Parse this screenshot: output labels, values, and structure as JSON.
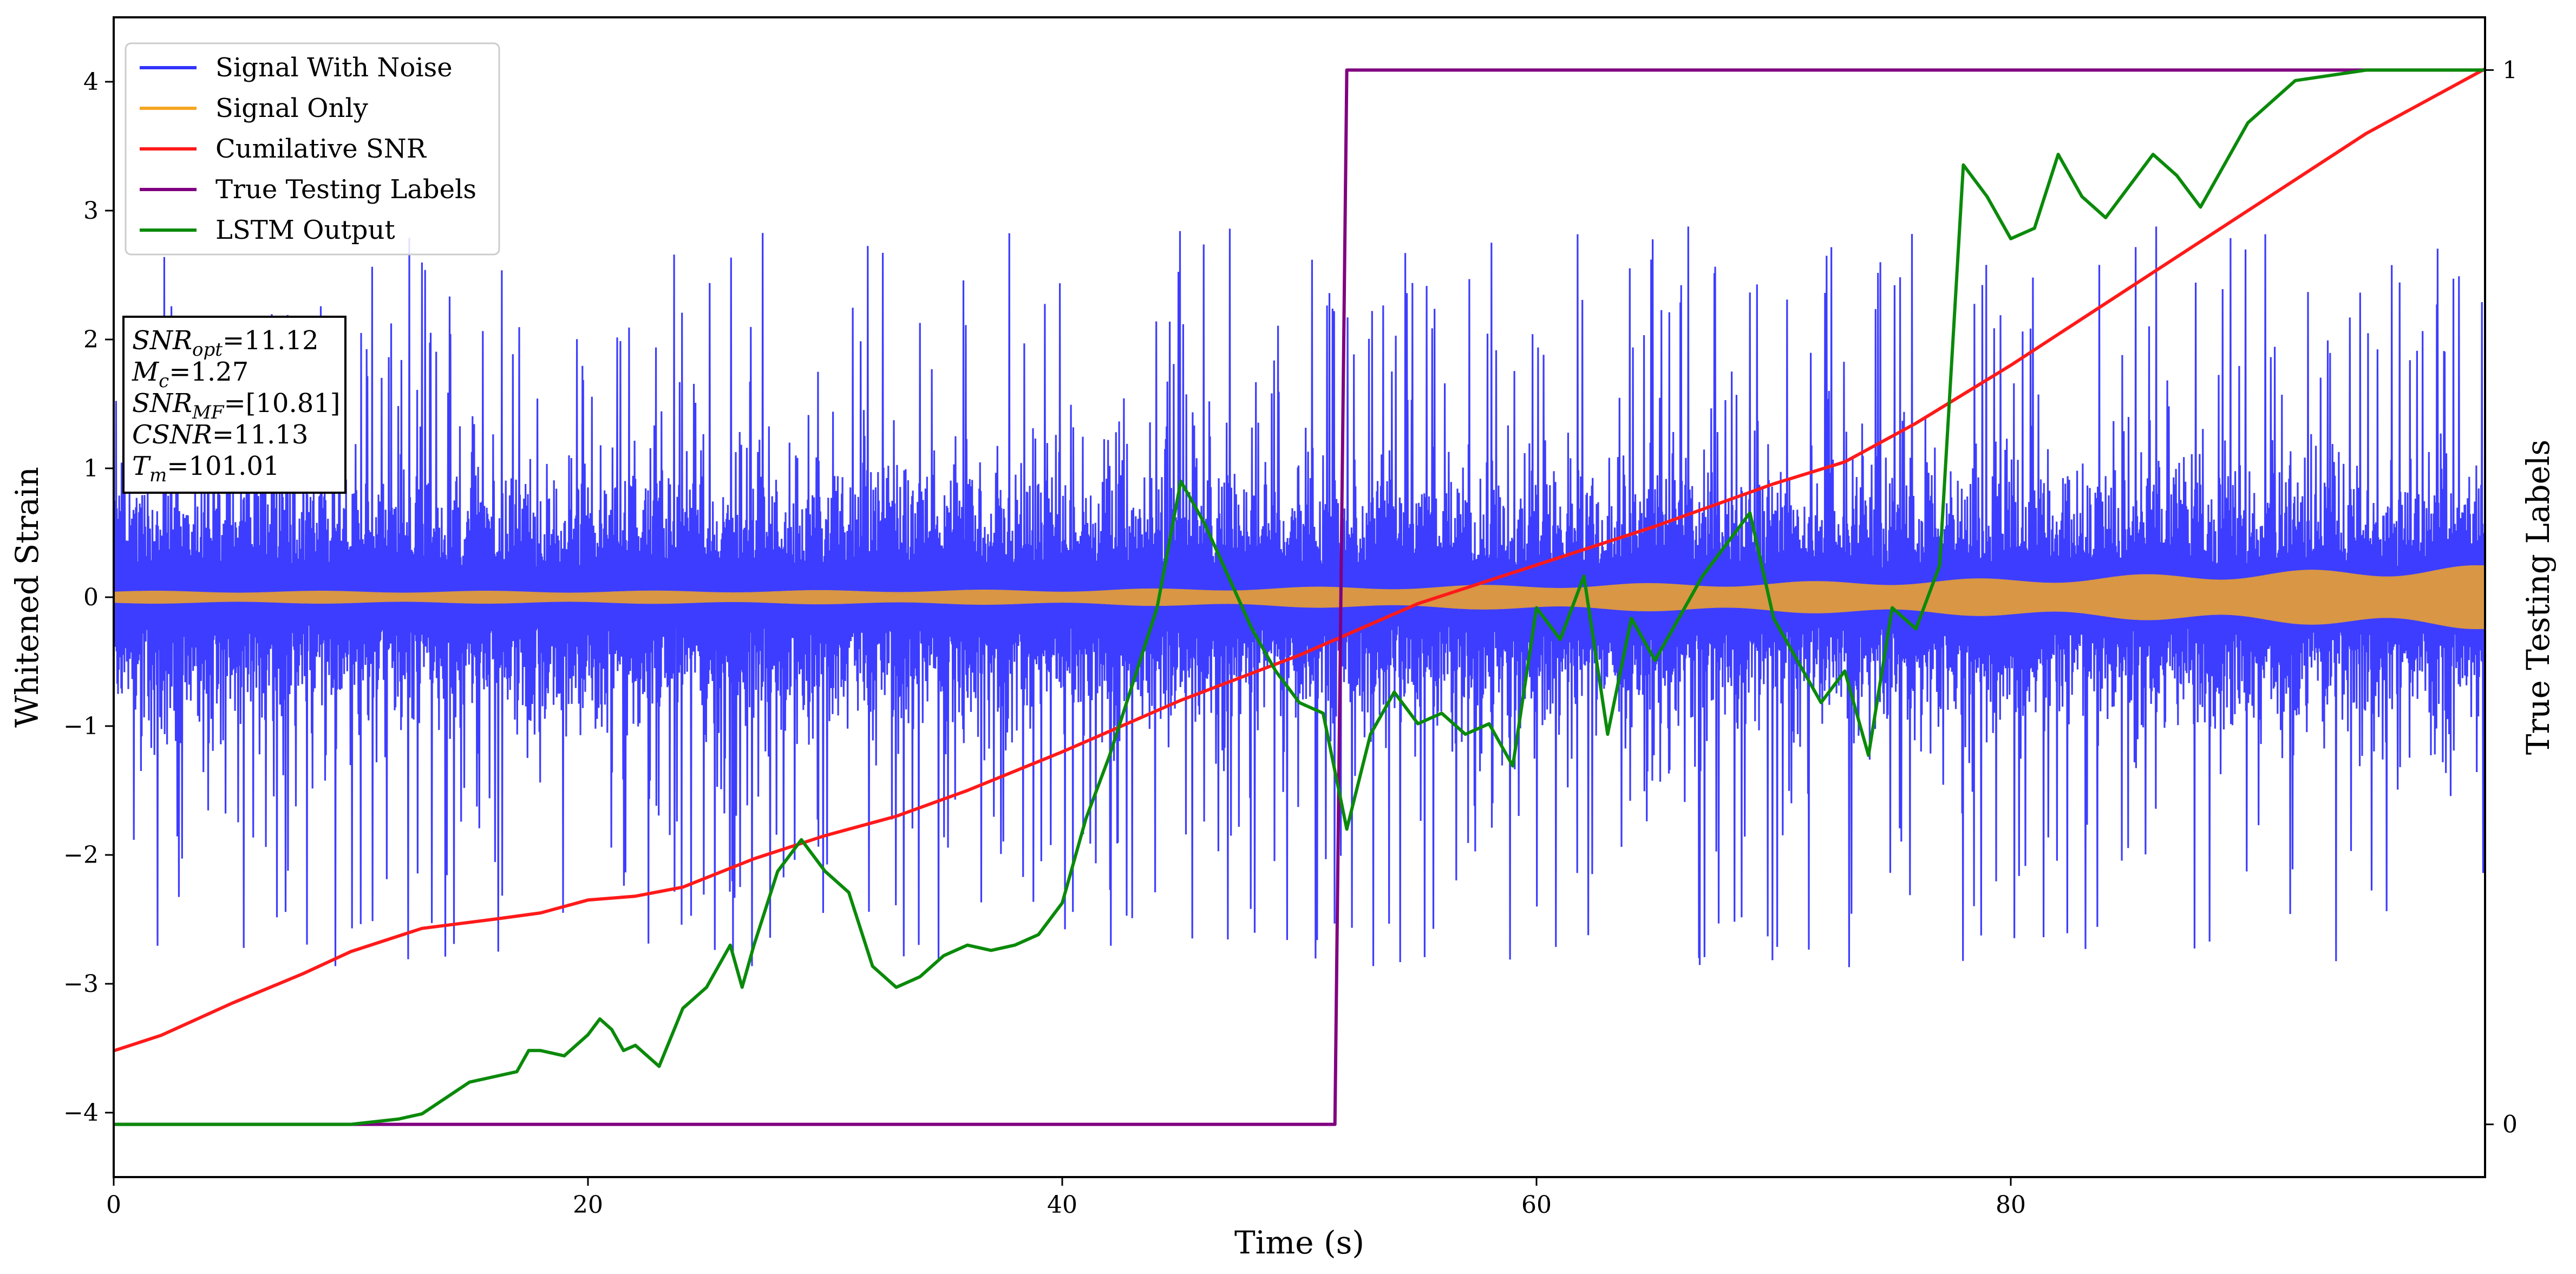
{
  "chart_data": {
    "type": "line",
    "title": "",
    "xlabel": "Time (s)",
    "ylabel": "Whitened Strain",
    "y2label": "True Testing Labels",
    "xlim": [
      0,
      100
    ],
    "ylim": [
      -4.5,
      4.5
    ],
    "y2lim": [
      -0.05,
      1.05
    ],
    "xticks": [
      0,
      20,
      40,
      60,
      80
    ],
    "yticks": [
      -4,
      -3,
      -2,
      -1,
      0,
      1,
      2,
      3,
      4
    ],
    "y2ticks": [
      0,
      1
    ],
    "grid": false,
    "legend_position": "top-left",
    "legend": [
      {
        "name": "Signal With Noise",
        "color": "#3333ff"
      },
      {
        "name": "Signal Only",
        "color": "#f5a623"
      },
      {
        "name": "Cumilative SNR",
        "color": "#ff1a1a"
      },
      {
        "name": "True Testing Labels",
        "color": "#800080"
      },
      {
        "name": "LSTM Output",
        "color": "#0a8a0a"
      }
    ],
    "info_box": [
      {
        "base": "SNR",
        "sub": "opt",
        "rest": "=11.12"
      },
      {
        "base": "M",
        "sub": "c",
        "rest": "=1.27"
      },
      {
        "base": "SNR",
        "sub": "MF",
        "rest": "=[10.81]"
      },
      {
        "base": "CSNR",
        "sub": "",
        "rest": "=11.13"
      },
      {
        "base": "T",
        "sub": "m",
        "rest": "=101.01"
      }
    ],
    "series": [
      {
        "name": "Signal With Noise",
        "axis": "left",
        "color": "#3333ff",
        "description_values": {
          "approx_range": [
            -3.3,
            3.2
          ],
          "envelope": "dense noise around 0.2 and -0.2 bands"
        }
      },
      {
        "name": "Signal Only",
        "axis": "left",
        "color": "#f5a623",
        "amplitude": {
          "x": [
            0,
            20,
            40,
            50,
            60,
            70,
            80,
            90,
            100
          ],
          "y": [
            0.05,
            0.05,
            0.06,
            0.08,
            0.1,
            0.12,
            0.15,
            0.2,
            0.25
          ]
        }
      },
      {
        "name": "Cumilative SNR",
        "axis": "left",
        "color": "#ff1a1a",
        "x": [
          0,
          2,
          5,
          8,
          10,
          13,
          16,
          18,
          20,
          22,
          24,
          27,
          30,
          33,
          36,
          40,
          45,
          50,
          55,
          60,
          65,
          70,
          73,
          76,
          80,
          85,
          90,
          95,
          100
        ],
        "y": [
          -3.52,
          -3.4,
          -3.15,
          -2.92,
          -2.75,
          -2.57,
          -2.5,
          -2.45,
          -2.35,
          -2.32,
          -2.25,
          -2.03,
          -1.85,
          -1.7,
          -1.5,
          -1.2,
          -0.8,
          -0.45,
          -0.05,
          0.25,
          0.55,
          0.88,
          1.05,
          1.35,
          1.8,
          2.4,
          3.0,
          3.6,
          4.1
        ]
      },
      {
        "name": "True Testing Labels",
        "axis": "right",
        "color": "#800080",
        "x": [
          0,
          51.5,
          52.0,
          100
        ],
        "y": [
          0,
          0,
          1,
          1
        ]
      },
      {
        "name": "LSTM Output",
        "axis": "right",
        "color": "#0a8a0a",
        "x": [
          0,
          10,
          12,
          13,
          14,
          15,
          16,
          17,
          17.5,
          18,
          19,
          20,
          20.5,
          21,
          21.5,
          22,
          23,
          24,
          25,
          26,
          26.5,
          27,
          28,
          29,
          30,
          31,
          32,
          33,
          34,
          35,
          36,
          37,
          38,
          39,
          40,
          41,
          42,
          43,
          44,
          45,
          46,
          47,
          48,
          49,
          50,
          51,
          52,
          53,
          54,
          55,
          56,
          57,
          58,
          59,
          60,
          61,
          62,
          63,
          64,
          65,
          66,
          67,
          68,
          69,
          70,
          71,
          72,
          73,
          74,
          75,
          76,
          77,
          78,
          79,
          80,
          81,
          82,
          83,
          84,
          85,
          86,
          87,
          88,
          90,
          92,
          95,
          100
        ],
        "y": [
          0,
          0,
          0.005,
          0.01,
          0.025,
          0.04,
          0.045,
          0.05,
          0.07,
          0.07,
          0.065,
          0.085,
          0.1,
          0.09,
          0.07,
          0.075,
          0.055,
          0.11,
          0.13,
          0.17,
          0.13,
          0.17,
          0.24,
          0.27,
          0.24,
          0.22,
          0.15,
          0.13,
          0.14,
          0.16,
          0.17,
          0.165,
          0.17,
          0.18,
          0.21,
          0.29,
          0.35,
          0.42,
          0.49,
          0.61,
          0.57,
          0.52,
          0.47,
          0.43,
          0.4,
          0.39,
          0.28,
          0.37,
          0.41,
          0.38,
          0.39,
          0.37,
          0.38,
          0.34,
          0.49,
          0.46,
          0.52,
          0.37,
          0.48,
          0.44,
          0.48,
          0.52,
          0.55,
          0.58,
          0.48,
          0.44,
          0.4,
          0.43,
          0.35,
          0.49,
          0.47,
          0.53,
          0.91,
          0.88,
          0.84,
          0.85,
          0.92,
          0.88,
          0.86,
          0.89,
          0.92,
          0.9,
          0.87,
          0.95,
          0.99,
          1.0,
          1.0
        ]
      }
    ]
  }
}
